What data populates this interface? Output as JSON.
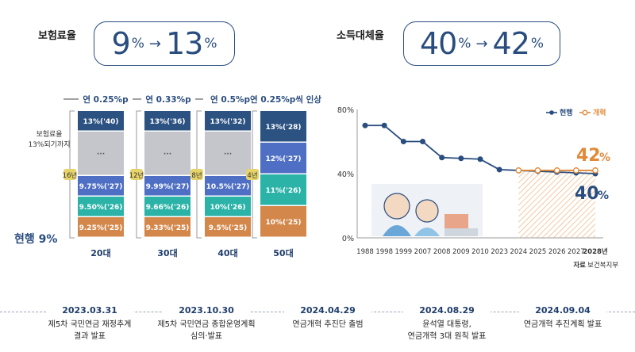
{
  "left_panel": {
    "title": "보험료율",
    "from_value": "9",
    "from_unit": "%",
    "to_value": "13",
    "to_unit": "%",
    "arrow": "→"
  },
  "right_panel": {
    "title": "소득대체율",
    "from_value": "40",
    "from_unit": "%",
    "to_value": "42",
    "to_unit": "%",
    "arrow": "→"
  },
  "chart_data": [
    {
      "type": "bar",
      "subtype": "stacked-steps",
      "categories": [
        "20대",
        "30대",
        "40대",
        "50대"
      ],
      "annual_increase": [
        "연 0.25%p",
        "연 0.33%p",
        "연 0.5%p",
        "연 0.25%p씩 인상"
      ],
      "years_to_reach": [
        "16년",
        "12년",
        "8년",
        "4년"
      ],
      "side_label": "보험료율 13%되기까지",
      "current_label": "현행 9%",
      "ellipsis": "···",
      "segments": [
        [
          {
            "label": "9.25%('25)",
            "color": "#d4874a"
          },
          {
            "label": "9.50%('26)",
            "color": "#2bb3a8"
          },
          {
            "label": "9.75%('27)",
            "color": "#4f6fc4"
          },
          {
            "label": "···",
            "color": "#c4c6cc"
          },
          {
            "label": "13%('40)",
            "color": "#2c5282"
          }
        ],
        [
          {
            "label": "9.33%('25)",
            "color": "#d4874a"
          },
          {
            "label": "9.66%('26)",
            "color": "#2bb3a8"
          },
          {
            "label": "9.99%('27)",
            "color": "#4f6fc4"
          },
          {
            "label": "···",
            "color": "#c4c6cc"
          },
          {
            "label": "13%('36)",
            "color": "#2c5282"
          }
        ],
        [
          {
            "label": "9.5%('25)",
            "color": "#d4874a"
          },
          {
            "label": "10%('26)",
            "color": "#2bb3a8"
          },
          {
            "label": "10.5%('27)",
            "color": "#4f6fc4"
          },
          {
            "label": "···",
            "color": "#c4c6cc"
          },
          {
            "label": "13%('32)",
            "color": "#2c5282"
          }
        ],
        [
          {
            "label": "10%('25)",
            "color": "#d4874a"
          },
          {
            "label": "11%('26)",
            "color": "#2bb3a8"
          },
          {
            "label": "12%('27)",
            "color": "#4f6fc4"
          },
          {
            "label": "13%('28)",
            "color": "#2c5282"
          }
        ]
      ]
    },
    {
      "type": "line",
      "x": [
        "1988",
        "1998",
        "1999",
        "2007",
        "2008",
        "2009",
        "2010",
        "2023",
        "2024",
        "2025",
        "2026",
        "2027",
        "2028년"
      ],
      "series": [
        {
          "name": "현행",
          "color": "#2a4d7f",
          "values": [
            70,
            70,
            60,
            60,
            50,
            49.5,
            49,
            42.5,
            42,
            41.5,
            41,
            40.5,
            40
          ]
        },
        {
          "name": "개혁",
          "color": "#e08a3a",
          "values": [
            null,
            null,
            null,
            null,
            null,
            null,
            null,
            null,
            42,
            42,
            42,
            42,
            42
          ]
        }
      ],
      "ylim": [
        0,
        80
      ],
      "ytick_labels": [
        "80%",
        "40%",
        "0%"
      ],
      "end_labels": {
        "reform_value": "42",
        "current_value": "40",
        "unit": "%"
      },
      "source": "자료 보건복지부"
    }
  ],
  "timeline": [
    {
      "date": "2023.03.31",
      "event": "제5차 국민연금 재정추계\n결과 발표"
    },
    {
      "date": "2023.10.30",
      "event": "제5차 국민연금 종합운영계획\n심의·발표"
    },
    {
      "date": "2024.04.29",
      "event": "연금개혁 추진단 출범"
    },
    {
      "date": "2024.08.29",
      "event": "윤석열 대통령,\n연금개혁 3대 원칙 발표"
    },
    {
      "date": "2024.09.04",
      "event": "연금개혁 추진계획 발표"
    }
  ]
}
